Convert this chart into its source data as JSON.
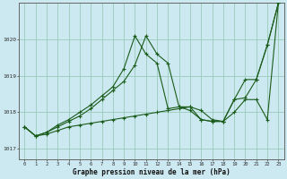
{
  "title": "Graphe pression niveau de la mer (hPa)",
  "bg_color": "#cce8f0",
  "grid_color": "#99ccbb",
  "line_color": "#1a5c1a",
  "xlim": [
    -0.5,
    23.5
  ],
  "ylim": [
    1016.7,
    1021.0
  ],
  "yticks": [
    1017,
    1018,
    1019,
    1020
  ],
  "xticks": [
    0,
    1,
    2,
    3,
    4,
    5,
    6,
    7,
    8,
    9,
    10,
    11,
    12,
    13,
    14,
    15,
    16,
    17,
    18,
    19,
    20,
    21,
    22,
    23
  ],
  "series1_x": [
    0,
    1,
    2,
    3,
    4,
    5,
    6,
    7,
    8,
    9,
    10,
    11,
    12,
    13,
    14,
    15,
    16,
    17,
    18,
    19,
    20,
    21,
    22,
    23
  ],
  "series1_y": [
    1017.6,
    1017.35,
    1017.4,
    1017.5,
    1017.6,
    1017.65,
    1017.7,
    1017.75,
    1017.8,
    1017.85,
    1017.9,
    1017.95,
    1018.0,
    1018.05,
    1018.1,
    1018.15,
    1017.8,
    1017.75,
    1017.75,
    1018.0,
    1018.35,
    1018.35,
    1017.8,
    1021.0
  ],
  "series2_x": [
    0,
    1,
    2,
    3,
    4,
    5,
    6,
    7,
    8,
    9,
    10,
    11,
    12,
    13,
    14,
    15,
    16,
    17,
    18,
    19,
    20,
    21,
    22,
    23
  ],
  "series2_y": [
    1017.6,
    1017.35,
    1017.45,
    1017.6,
    1017.75,
    1017.9,
    1018.1,
    1018.35,
    1018.6,
    1018.85,
    1019.3,
    1020.1,
    1019.6,
    1019.35,
    1018.15,
    1018.15,
    1018.05,
    1017.8,
    1017.75,
    1018.35,
    1018.9,
    1018.9,
    1019.85,
    1021.0
  ],
  "series3_x": [
    0,
    1,
    2,
    3,
    4,
    5,
    6,
    7,
    8,
    9,
    10,
    11,
    12,
    13,
    14,
    15,
    16,
    17,
    18,
    19,
    20,
    21,
    22,
    23
  ],
  "series3_y": [
    1017.6,
    1017.35,
    1017.45,
    1017.65,
    1017.8,
    1018.0,
    1018.2,
    1018.45,
    1018.7,
    1019.2,
    1020.1,
    1019.6,
    1019.35,
    1018.1,
    1018.15,
    1018.05,
    1017.8,
    1017.75,
    1017.75,
    1018.35,
    1018.4,
    1018.9,
    1019.85,
    1021.0
  ]
}
